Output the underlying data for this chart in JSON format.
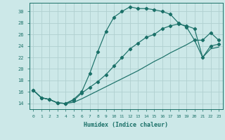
{
  "xlabel": "Humidex (Indice chaleur)",
  "bg_color": "#cce8e8",
  "line_color": "#1a7068",
  "grid_color": "#b0d0d0",
  "xlim": [
    -0.5,
    23.5
  ],
  "ylim": [
    13.0,
    31.5
  ],
  "xticks": [
    0,
    1,
    2,
    3,
    4,
    5,
    6,
    7,
    8,
    9,
    10,
    11,
    12,
    13,
    14,
    15,
    16,
    17,
    18,
    19,
    20,
    21,
    22,
    23
  ],
  "yticks": [
    14,
    16,
    18,
    20,
    22,
    24,
    26,
    28,
    30
  ],
  "curve1_x": [
    0,
    1,
    2,
    3,
    4,
    5,
    6,
    7,
    8,
    9,
    10,
    11,
    12,
    13,
    14,
    15,
    16,
    17,
    18,
    19,
    20,
    21,
    22,
    23
  ],
  "curve1_y": [
    16.3,
    15.0,
    14.7,
    14.1,
    14.0,
    14.7,
    16.0,
    19.2,
    23.0,
    26.5,
    29.0,
    30.0,
    30.8,
    30.5,
    30.5,
    30.3,
    30.0,
    29.5,
    28.0,
    27.3,
    25.0,
    25.0,
    26.3,
    25.0
  ],
  "curve2_x": [
    0,
    1,
    2,
    3,
    4,
    5,
    6,
    7,
    8,
    9,
    10,
    11,
    12,
    13,
    14,
    15,
    16,
    17,
    18,
    19,
    20,
    21,
    22,
    23
  ],
  "curve2_y": [
    16.3,
    15.0,
    14.7,
    14.1,
    14.0,
    14.5,
    15.8,
    16.8,
    17.8,
    19.0,
    20.5,
    22.0,
    23.5,
    24.5,
    25.5,
    26.0,
    27.0,
    27.5,
    27.8,
    27.5,
    27.0,
    22.0,
    24.0,
    24.3
  ],
  "curve3_x": [
    0,
    1,
    2,
    3,
    4,
    5,
    6,
    7,
    8,
    9,
    10,
    11,
    12,
    13,
    14,
    15,
    16,
    17,
    18,
    19,
    20,
    21,
    22,
    23
  ],
  "curve3_y": [
    16.3,
    15.0,
    14.7,
    14.1,
    14.0,
    14.2,
    14.8,
    15.5,
    16.2,
    16.9,
    17.6,
    18.3,
    19.0,
    19.7,
    20.5,
    21.3,
    22.0,
    22.8,
    23.5,
    24.2,
    25.0,
    22.0,
    23.5,
    23.8
  ]
}
